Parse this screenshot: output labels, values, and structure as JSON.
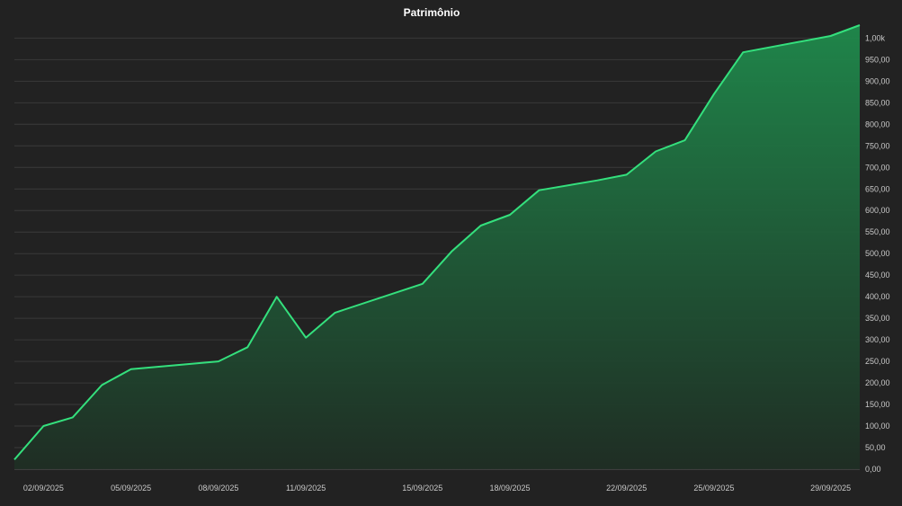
{
  "colors": {
    "background": "#222222",
    "line": "#34e07d",
    "fill_top": "#1f8a4c",
    "fill_bottom": "#1f2e24",
    "grid": "#3a3a3a",
    "text": "#c8c8c8"
  },
  "chart_data": {
    "type": "area",
    "title": "Patrimônio",
    "xlabel": "",
    "ylabel": "",
    "grid": true,
    "legend": "none",
    "y_axis_position": "right",
    "xlim": [
      "2025-09-01",
      "2025-09-30"
    ],
    "ylim": [
      0,
      1030
    ],
    "x_ticks": [
      "02/09/2025",
      "05/09/2025",
      "08/09/2025",
      "11/09/2025",
      "15/09/2025",
      "18/09/2025",
      "22/09/2025",
      "25/09/2025",
      "29/09/2025"
    ],
    "y_ticks": [
      {
        "value": 0,
        "label": "0,00"
      },
      {
        "value": 50,
        "label": "50,00"
      },
      {
        "value": 100,
        "label": "100,00"
      },
      {
        "value": 150,
        "label": "150,00"
      },
      {
        "value": 200,
        "label": "200,00"
      },
      {
        "value": 250,
        "label": "250,00"
      },
      {
        "value": 300,
        "label": "300,00"
      },
      {
        "value": 350,
        "label": "350,00"
      },
      {
        "value": 400,
        "label": "400,00"
      },
      {
        "value": 450,
        "label": "450,00"
      },
      {
        "value": 500,
        "label": "500,00"
      },
      {
        "value": 550,
        "label": "550,00"
      },
      {
        "value": 600,
        "label": "600,00"
      },
      {
        "value": 650,
        "label": "650,00"
      },
      {
        "value": 700,
        "label": "700,00"
      },
      {
        "value": 750,
        "label": "750,00"
      },
      {
        "value": 800,
        "label": "800,00"
      },
      {
        "value": 850,
        "label": "850,00"
      },
      {
        "value": 900,
        "label": "900,00"
      },
      {
        "value": 950,
        "label": "950,00"
      },
      {
        "value": 1000,
        "label": "1,00k"
      }
    ],
    "series": [
      {
        "x": [
          "2025-09-01",
          "2025-09-02",
          "2025-09-03",
          "2025-09-04",
          "2025-09-05",
          "2025-09-08",
          "2025-09-09",
          "2025-09-10",
          "2025-09-11",
          "2025-09-12",
          "2025-09-15",
          "2025-09-16",
          "2025-09-17",
          "2025-09-18",
          "2025-09-19",
          "2025-09-21",
          "2025-09-22",
          "2025-09-23",
          "2025-09-24",
          "2025-09-25",
          "2025-09-26",
          "2025-09-29",
          "2025-09-30"
        ],
        "y": [
          22,
          100,
          120,
          195,
          232,
          250,
          283,
          400,
          305,
          363,
          430,
          505,
          565,
          590,
          647,
          670,
          683,
          737,
          763,
          870,
          967,
          1005,
          1030
        ]
      }
    ]
  }
}
